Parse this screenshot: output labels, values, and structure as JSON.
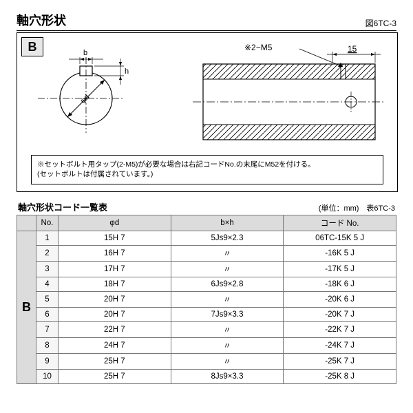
{
  "header": {
    "title": "軸穴形状",
    "figure_label": "図6TC-3"
  },
  "diagram": {
    "tag": "B",
    "dim_b": "b",
    "dim_h": "h",
    "dim_phi_d": "φd",
    "callout_2m5": "※2−M5",
    "dim_15": "15",
    "colors": {
      "line": "#000000",
      "hatch": "#000000",
      "centerline": "#000000",
      "tag_bg": "#e8e8e8"
    },
    "note_line1": "※セットボルト用タップ(2-M5)が必要な場合は右記コードNo.の末尾にM52を付ける。",
    "note_line2": "(セットボルトは付属されています。)"
  },
  "table": {
    "title": "軸穴形状コード一覧表",
    "unit_label": "(単位：mm)　表6TC-3",
    "group_label": "B",
    "columns": [
      "No.",
      "φd",
      "b×h",
      "コード No."
    ],
    "rows": [
      {
        "no": "1",
        "phi_d": "15H 7",
        "bxh": "5Js9×2.3",
        "code": "06TC-15K 5 J"
      },
      {
        "no": "2",
        "phi_d": "16H 7",
        "bxh": "〃",
        "code": "-16K 5 J"
      },
      {
        "no": "3",
        "phi_d": "17H 7",
        "bxh": "〃",
        "code": "-17K 5 J"
      },
      {
        "no": "4",
        "phi_d": "18H 7",
        "bxh": "6Js9×2.8",
        "code": "-18K 6 J"
      },
      {
        "no": "5",
        "phi_d": "20H 7",
        "bxh": "〃",
        "code": "-20K 6 J"
      },
      {
        "no": "6",
        "phi_d": "20H 7",
        "bxh": "7Js9×3.3",
        "code": "-20K 7 J"
      },
      {
        "no": "7",
        "phi_d": "22H 7",
        "bxh": "〃",
        "code": "-22K 7 J"
      },
      {
        "no": "8",
        "phi_d": "24H 7",
        "bxh": "〃",
        "code": "-24K 7 J"
      },
      {
        "no": "9",
        "phi_d": "25H 7",
        "bxh": "〃",
        "code": "-25K 7 J"
      },
      {
        "no": "10",
        "phi_d": "25H 7",
        "bxh": "8Js9×3.3",
        "code": "-25K 8 J"
      }
    ]
  }
}
